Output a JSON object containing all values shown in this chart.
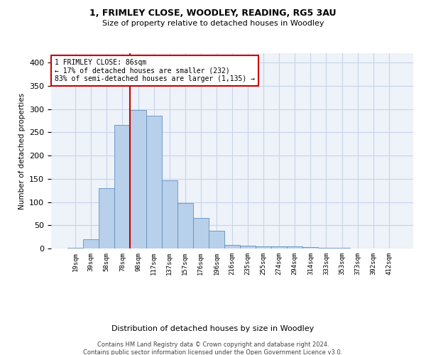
{
  "title": "1, FRIMLEY CLOSE, WOODLEY, READING, RG5 3AU",
  "subtitle": "Size of property relative to detached houses in Woodley",
  "xlabel_bottom": "Distribution of detached houses by size in Woodley",
  "ylabel": "Number of detached properties",
  "categories": [
    "19sqm",
    "39sqm",
    "58sqm",
    "78sqm",
    "98sqm",
    "117sqm",
    "137sqm",
    "157sqm",
    "176sqm",
    "196sqm",
    "216sqm",
    "235sqm",
    "255sqm",
    "274sqm",
    "294sqm",
    "314sqm",
    "333sqm",
    "353sqm",
    "373sqm",
    "392sqm",
    "412sqm"
  ],
  "values": [
    2,
    20,
    130,
    265,
    298,
    285,
    147,
    98,
    65,
    38,
    8,
    6,
    4,
    5,
    4,
    3,
    2,
    1,
    0,
    0,
    0
  ],
  "bar_color": "#b8d0ea",
  "bar_edge_color": "#6090c0",
  "grid_color": "#c8d4e8",
  "background_color": "#eef2f9",
  "red_line_x": 3.5,
  "annotation_text": "1 FRIMLEY CLOSE: 86sqm\n← 17% of detached houses are smaller (232)\n83% of semi-detached houses are larger (1,135) →",
  "annotation_box_color": "#ffffff",
  "annotation_box_edge": "#cc0000",
  "annotation_text_color": "#000000",
  "footer_line1": "Contains HM Land Registry data © Crown copyright and database right 2024.",
  "footer_line2": "Contains public sector information licensed under the Open Government Licence v3.0.",
  "ylim": [
    0,
    420
  ],
  "yticks": [
    0,
    50,
    100,
    150,
    200,
    250,
    300,
    350,
    400
  ]
}
